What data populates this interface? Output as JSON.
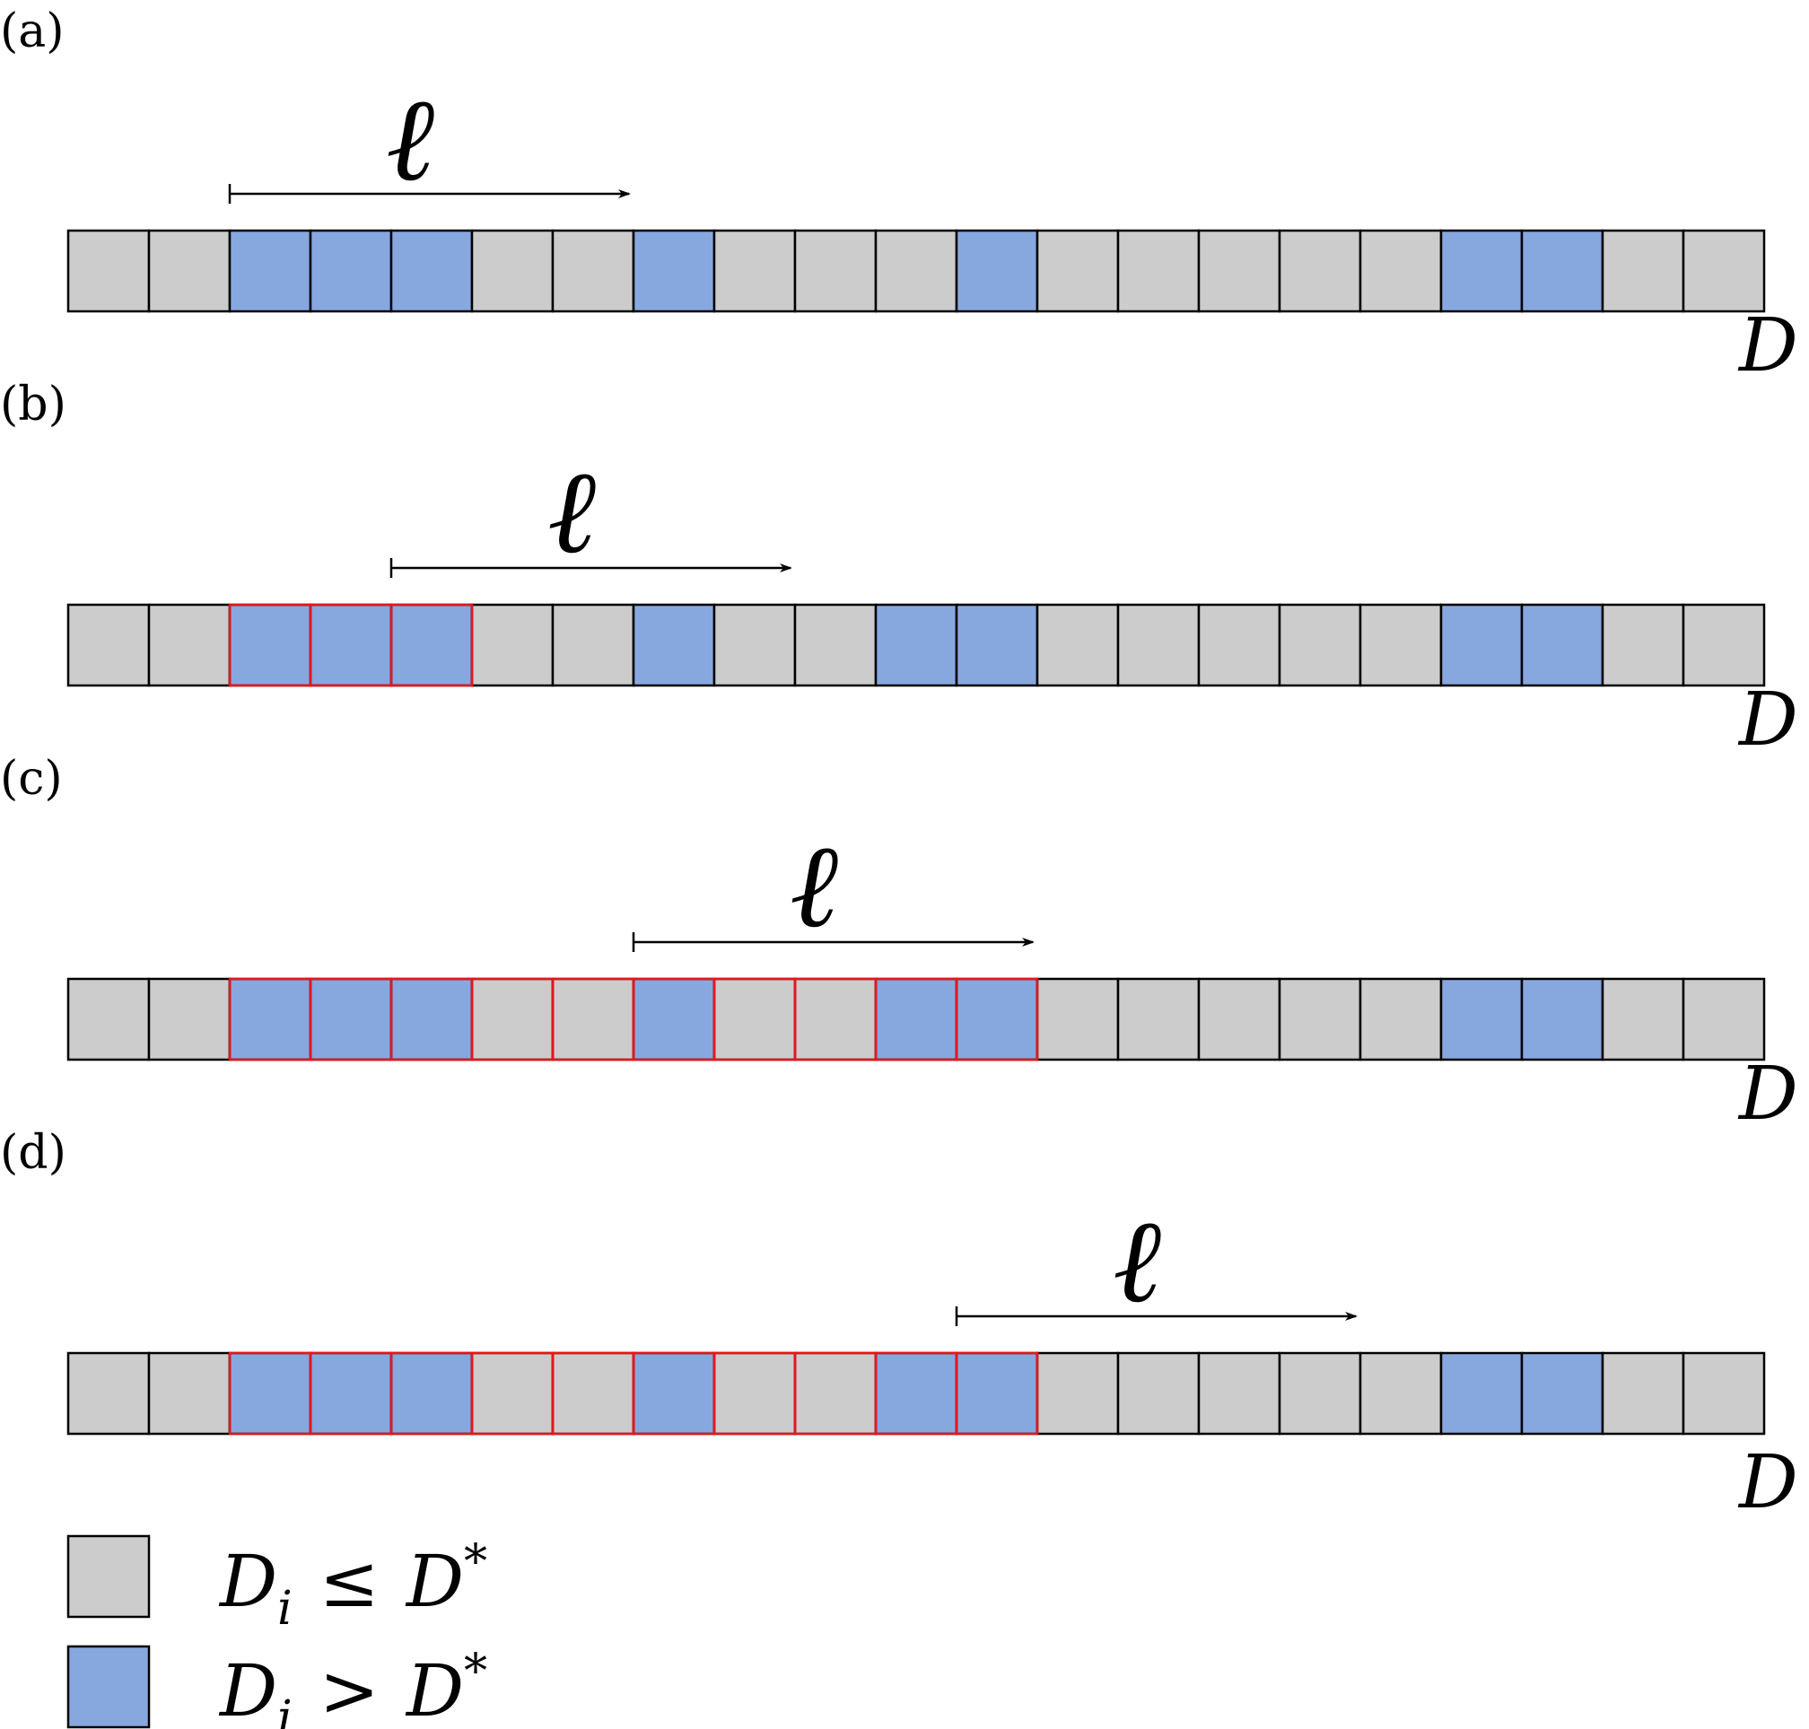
{
  "panels": [
    {
      "label": "(a)",
      "window_symbol": "ℓ",
      "axis_label": "D",
      "cells": [
        0,
        0,
        1,
        1,
        1,
        0,
        0,
        1,
        0,
        0,
        0,
        1,
        0,
        0,
        0,
        0,
        0,
        1,
        1,
        0,
        0
      ],
      "highlight_range": null,
      "window_start_cell": 2
    },
    {
      "label": "(b)",
      "window_symbol": "ℓ",
      "axis_label": "D",
      "cells": [
        0,
        0,
        1,
        1,
        1,
        0,
        0,
        1,
        0,
        0,
        1,
        1,
        0,
        0,
        0,
        0,
        0,
        1,
        1,
        0,
        0
      ],
      "highlight_range": [
        2,
        4
      ],
      "window_start_cell": 4
    },
    {
      "label": "(c)",
      "window_symbol": "ℓ",
      "axis_label": "D",
      "cells": [
        0,
        0,
        1,
        1,
        1,
        0,
        0,
        1,
        0,
        0,
        1,
        1,
        0,
        0,
        0,
        0,
        0,
        1,
        1,
        0,
        0
      ],
      "highlight_range": [
        2,
        11
      ],
      "window_start_cell": 7
    },
    {
      "label": "(d)",
      "window_symbol": "ℓ",
      "axis_label": "D",
      "cells": [
        0,
        0,
        1,
        1,
        1,
        0,
        0,
        1,
        0,
        0,
        1,
        1,
        0,
        0,
        0,
        0,
        0,
        1,
        1,
        0,
        0
      ],
      "highlight_range": [
        2,
        11
      ],
      "window_start_cell": 11
    }
  ],
  "legend": [
    {
      "kind": 0,
      "base": "D",
      "sub": "i",
      "relation": "≤",
      "rhs": "D",
      "sup": "*"
    },
    {
      "kind": 1,
      "base": "D",
      "sub": "i",
      "relation": ">",
      "rhs": "D",
      "sup": "*"
    }
  ],
  "colors": {
    "low": "#cccccc",
    "high": "#87a7df",
    "cell_border": "#000000",
    "highlight_border": "#e8151b"
  }
}
